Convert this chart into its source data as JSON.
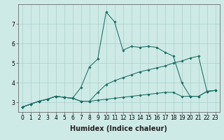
{
  "xlabel": "Humidex (Indice chaleur)",
  "background_color": "#ceeae6",
  "grid_color": "#aacfcb",
  "line_color": "#1a6e64",
  "line1": {
    "x": [
      0,
      1,
      2,
      3,
      4,
      5,
      6,
      7,
      8,
      9,
      10,
      11,
      12,
      13,
      14,
      15,
      16,
      17,
      18,
      19,
      20,
      21,
      22,
      23
    ],
    "y": [
      2.75,
      2.9,
      3.05,
      3.15,
      3.3,
      3.25,
      3.2,
      3.05,
      3.05,
      3.1,
      3.15,
      3.2,
      3.25,
      3.3,
      3.35,
      3.4,
      3.45,
      3.5,
      3.5,
      3.3,
      3.3,
      3.3,
      3.55,
      3.6
    ]
  },
  "line2": {
    "x": [
      0,
      1,
      2,
      3,
      4,
      5,
      6,
      7,
      8,
      9,
      10,
      11,
      12,
      13,
      14,
      15,
      16,
      17,
      18,
      19,
      20,
      21,
      22,
      23
    ],
    "y": [
      2.75,
      2.9,
      3.05,
      3.15,
      3.3,
      3.25,
      3.2,
      3.05,
      3.05,
      3.5,
      3.9,
      4.1,
      4.25,
      4.4,
      4.55,
      4.65,
      4.75,
      4.85,
      5.0,
      5.1,
      5.25,
      5.35,
      3.55,
      3.6
    ]
  },
  "line3": {
    "x": [
      0,
      1,
      2,
      3,
      4,
      5,
      6,
      7,
      8,
      9,
      10,
      11,
      12,
      13,
      14,
      15,
      16,
      17,
      18,
      19,
      20,
      21,
      22,
      23
    ],
    "y": [
      2.75,
      2.9,
      3.05,
      3.15,
      3.3,
      3.25,
      3.2,
      3.75,
      4.8,
      5.2,
      7.6,
      7.1,
      5.65,
      5.85,
      5.8,
      5.85,
      5.8,
      5.55,
      5.35,
      4.0,
      3.3,
      3.3,
      3.55,
      3.6
    ]
  },
  "xlim": [
    -0.5,
    23.5
  ],
  "ylim": [
    2.5,
    8.0
  ],
  "yticks": [
    3,
    4,
    5,
    6,
    7
  ],
  "xticks": [
    0,
    1,
    2,
    3,
    4,
    5,
    6,
    7,
    8,
    9,
    10,
    11,
    12,
    13,
    14,
    15,
    16,
    17,
    18,
    19,
    20,
    21,
    22,
    23
  ],
  "tick_fontsize": 5.5,
  "xlabel_fontsize": 7,
  "marker": "D",
  "markersize": 1.8,
  "linewidth": 0.75
}
